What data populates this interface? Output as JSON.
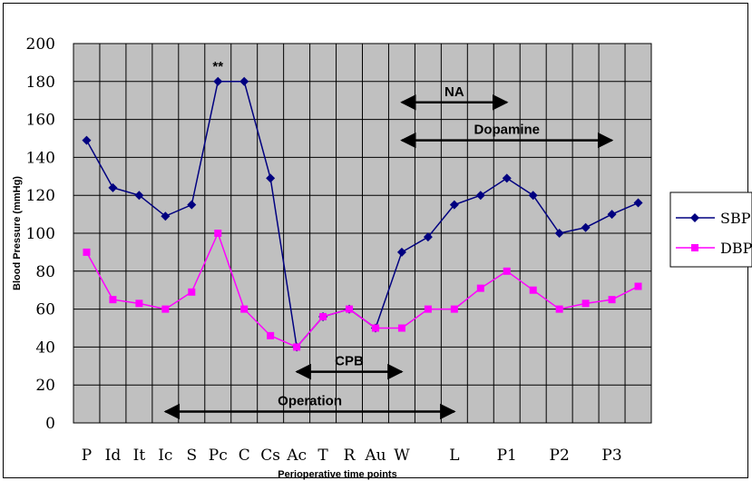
{
  "chart_data": {
    "type": "line",
    "xlabel": "Perioperative time points",
    "ylabel": "Blood Pressure (mmHg)",
    "ylim": [
      0,
      200
    ],
    "yticks": [
      0,
      20,
      40,
      60,
      80,
      100,
      120,
      140,
      160,
      180,
      200
    ],
    "grid": true,
    "legend_position": "right",
    "categories": [
      "P",
      "Id",
      "It",
      "Ic",
      "S",
      "Pc",
      "C",
      "Cs",
      "Ac",
      "T",
      "R",
      "Au",
      "W",
      "",
      "L",
      "",
      "P1",
      "",
      "P2",
      "",
      "P3",
      ""
    ],
    "series": [
      {
        "name": "SBP",
        "color": "#000080",
        "marker": "diamond",
        "values": [
          149,
          124,
          120,
          109,
          115,
          180,
          180,
          129,
          40,
          56,
          60,
          50,
          90,
          98,
          115,
          120,
          129,
          120,
          100,
          103,
          110,
          116
        ]
      },
      {
        "name": "DBP",
        "color": "#ff00ff",
        "marker": "square",
        "values": [
          90,
          65,
          63,
          60,
          69,
          100,
          60,
          46,
          40,
          56,
          60,
          50,
          50,
          60,
          60,
          71,
          80,
          70,
          60,
          63,
          65,
          72
        ]
      }
    ],
    "annotations": [
      {
        "text": "**",
        "at": "Pc",
        "y": 180
      },
      {
        "text": "NA",
        "from": "W",
        "to": "P1",
        "y": 169
      },
      {
        "text": "Dopamine",
        "from": "W",
        "to": "P3",
        "y": 149
      },
      {
        "text": "CPB",
        "from": "Ac",
        "to": "W",
        "y": 27
      },
      {
        "text": "Operation",
        "from": "Ic",
        "to": "L",
        "y": 6
      }
    ]
  }
}
